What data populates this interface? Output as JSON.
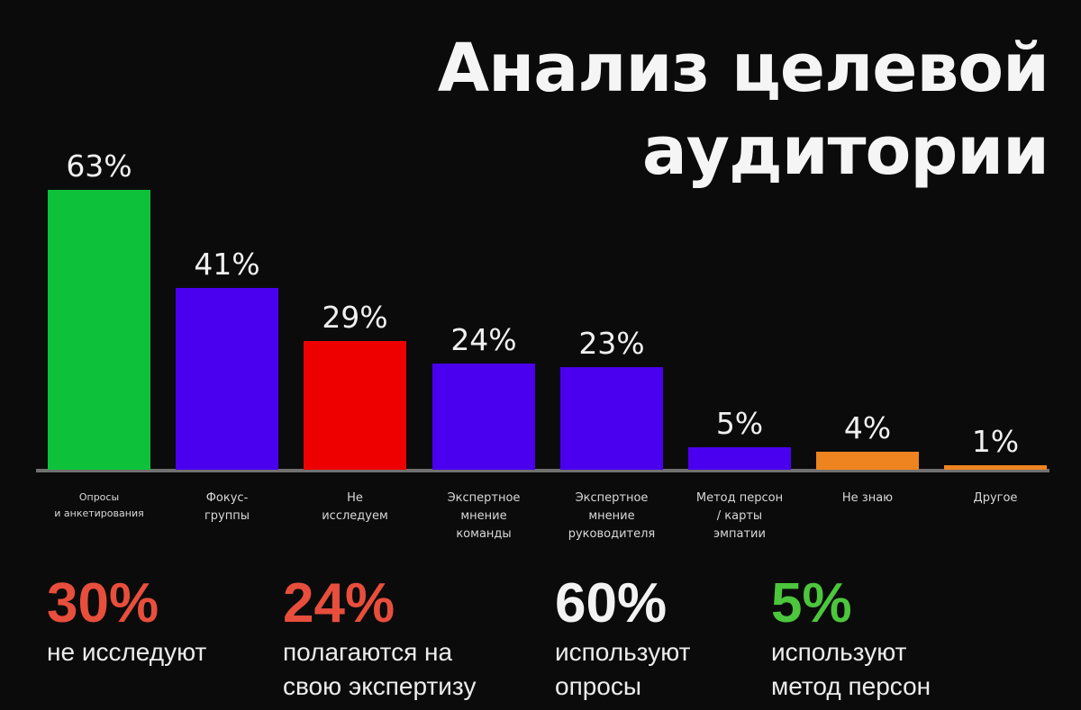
{
  "header": {
    "title_line1": "Анализ целевой",
    "title_line2": "аудитории"
  },
  "chart_data": {
    "type": "bar",
    "title": "Анализ целевой аудитории",
    "xlabel": "",
    "ylabel": "",
    "ylim": [
      0,
      63
    ],
    "grid": false,
    "legend": null,
    "categories": [
      "Опросы и анкетирования",
      "Фокус-группы",
      "Не исследуем",
      "Экспертное мнение команды",
      "Экспертное мнение руководителя",
      "Метод персон / карты эмпатии",
      "Не знаю",
      "Другое"
    ],
    "values": [
      63,
      41,
      29,
      24,
      23,
      5,
      4,
      1
    ],
    "value_labels": [
      "63%",
      "41%",
      "29%",
      "24%",
      "23%",
      "5%",
      "4%",
      "1%"
    ],
    "colors": [
      "#0dc23a",
      "#4a00ee",
      "#ee0000",
      "#4a00ee",
      "#4a00ee",
      "#4a00ee",
      "#ee8420",
      "#ee8420"
    ],
    "category_labels_display": [
      "Опросы\nи анкетирования",
      "Фокус-\nгруппы",
      "Не\nисследуем",
      "Экспертное\nмнение\nкоманды",
      "Экспертное\nмнение\nруководителя",
      "Метод персон\n/ карты\nэмпатии",
      "Не знаю",
      "Другое"
    ]
  },
  "stats": [
    {
      "value": "30%",
      "desc": "не исследуют",
      "color": "#e84e3c"
    },
    {
      "value": "24%",
      "desc": "полагаются на\nсвою экспертизу",
      "color": "#e84e3c"
    },
    {
      "value": "60%",
      "desc": "используют\nопросы",
      "color": "#f2f2f2"
    },
    {
      "value": "5%",
      "desc": "используют\nметод персон",
      "color": "#4cc63c"
    }
  ]
}
